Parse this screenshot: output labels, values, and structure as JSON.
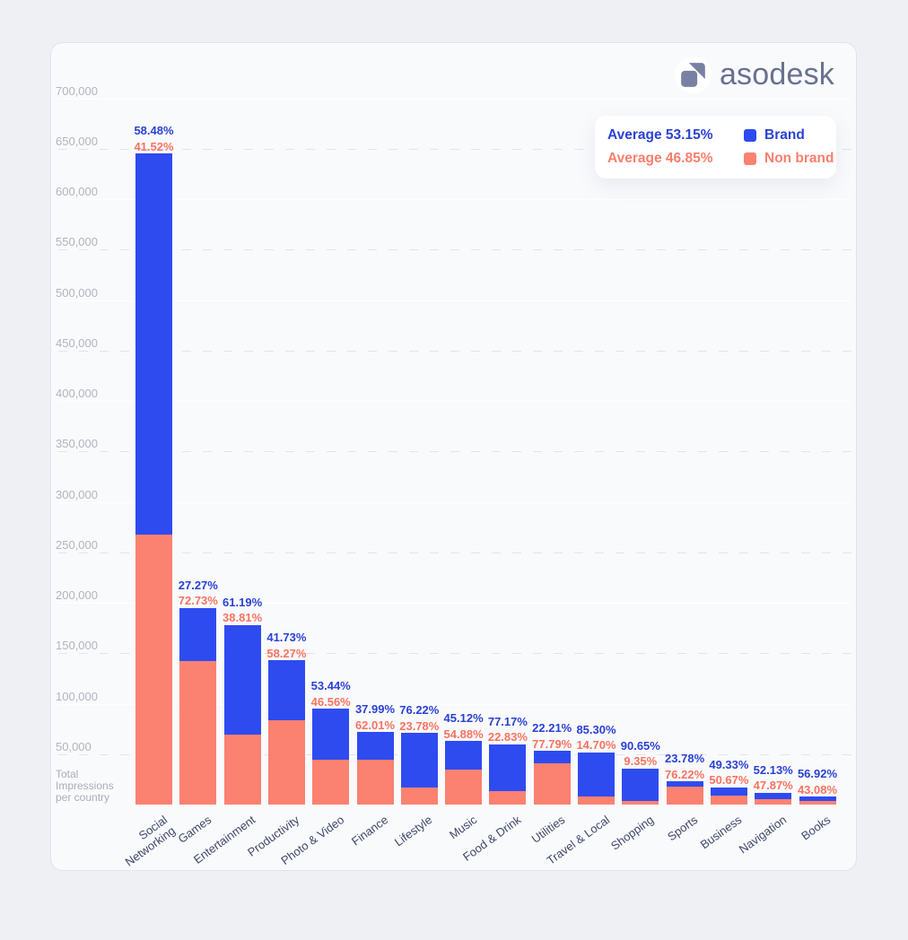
{
  "logo": {
    "text": "asodesk"
  },
  "legend": {
    "position": "top-right",
    "rows": [
      {
        "average": "Average 53.15%",
        "name": "Brand",
        "color": "#2e4bf0",
        "text_color": "#2a41d4"
      },
      {
        "average": "Average 46.85%",
        "name": "Non brand",
        "color": "#fb8170",
        "text_color": "#f97e6c"
      }
    ]
  },
  "chart_data": {
    "type": "bar",
    "subtype": "stacked",
    "title": "",
    "xlabel": "",
    "ylabel": "Total Impressions per country",
    "ylabel_display": "Total\nImpressions\nper country",
    "ylim": [
      0,
      700000
    ],
    "ytick_step": 50000,
    "ytick_labels": [
      "50,000",
      "100,000",
      "150,000",
      "200,000",
      "250,000",
      "300,000",
      "350,000",
      "400,000",
      "450,000",
      "500,000",
      "550,000",
      "600,000",
      "650,000",
      "700,000"
    ],
    "grid": "horizontal; dashed gray at odd 50k multiples, solid white at 100k multiples",
    "legend_position": "top-right",
    "categories": [
      "Social\nNetworking",
      "Games",
      "Entertainment",
      "Productivity",
      "Photo & Video",
      "Finance",
      "Lifestyle",
      "Music",
      "Food & Drink",
      "Utilities",
      "Travel & Local",
      "Shopping",
      "Sports",
      "Business",
      "Navigation",
      "Books"
    ],
    "totals_estimated": [
      645000,
      195000,
      178000,
      143000,
      95000,
      72000,
      71000,
      63000,
      60000,
      53000,
      52000,
      36000,
      23000,
      17000,
      12000,
      8000
    ],
    "series": [
      {
        "name": "Brand",
        "color": "#2e4bf0",
        "label_color": "#2a41d4",
        "percent": [
          "58.48",
          "27.27",
          "61.19",
          "41.73",
          "53.44",
          "37.99",
          "76.22",
          "45.12",
          "77.17",
          "22.21",
          "85.30",
          "90.65",
          "23.78",
          "49.33",
          "52.13",
          "56.92"
        ]
      },
      {
        "name": "Non brand",
        "color": "#fb8170",
        "label_color": "#f8735f",
        "percent": [
          "41.52",
          "72.73",
          "38.81",
          "58.27",
          "46.56",
          "62.01",
          "23.78",
          "54.88",
          "22.83",
          "77.79",
          "14.70",
          "9.35",
          "76.22",
          "50.67",
          "47.87",
          "43.08"
        ]
      }
    ]
  }
}
